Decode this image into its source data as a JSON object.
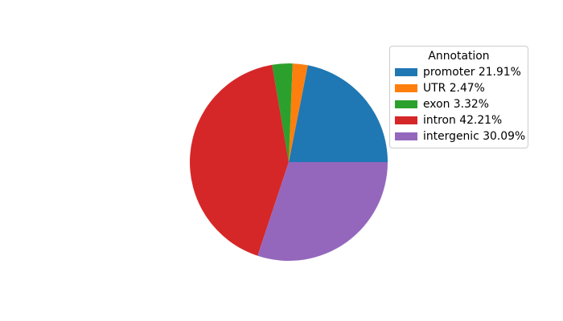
{
  "chart_data": {
    "type": "pie",
    "title": "",
    "legend": {
      "title": "Annotation",
      "position": "upper right"
    },
    "start_angle_deg": 0,
    "direction": "counterclockwise",
    "slices": [
      {
        "label": "promoter",
        "value": 21.91,
        "legend_label": "promoter 21.91%",
        "color": "#1f77b4"
      },
      {
        "label": "UTR",
        "value": 2.47,
        "legend_label": "UTR 2.47%",
        "color": "#ff7f0e"
      },
      {
        "label": "exon",
        "value": 3.32,
        "legend_label": "exon 3.32%",
        "color": "#2ca02c"
      },
      {
        "label": "intron",
        "value": 42.21,
        "legend_label": "intron 42.21%",
        "color": "#d62728"
      },
      {
        "label": "intergenic",
        "value": 30.09,
        "legend_label": "intergenic 30.09%",
        "color": "#9467bd"
      }
    ]
  }
}
